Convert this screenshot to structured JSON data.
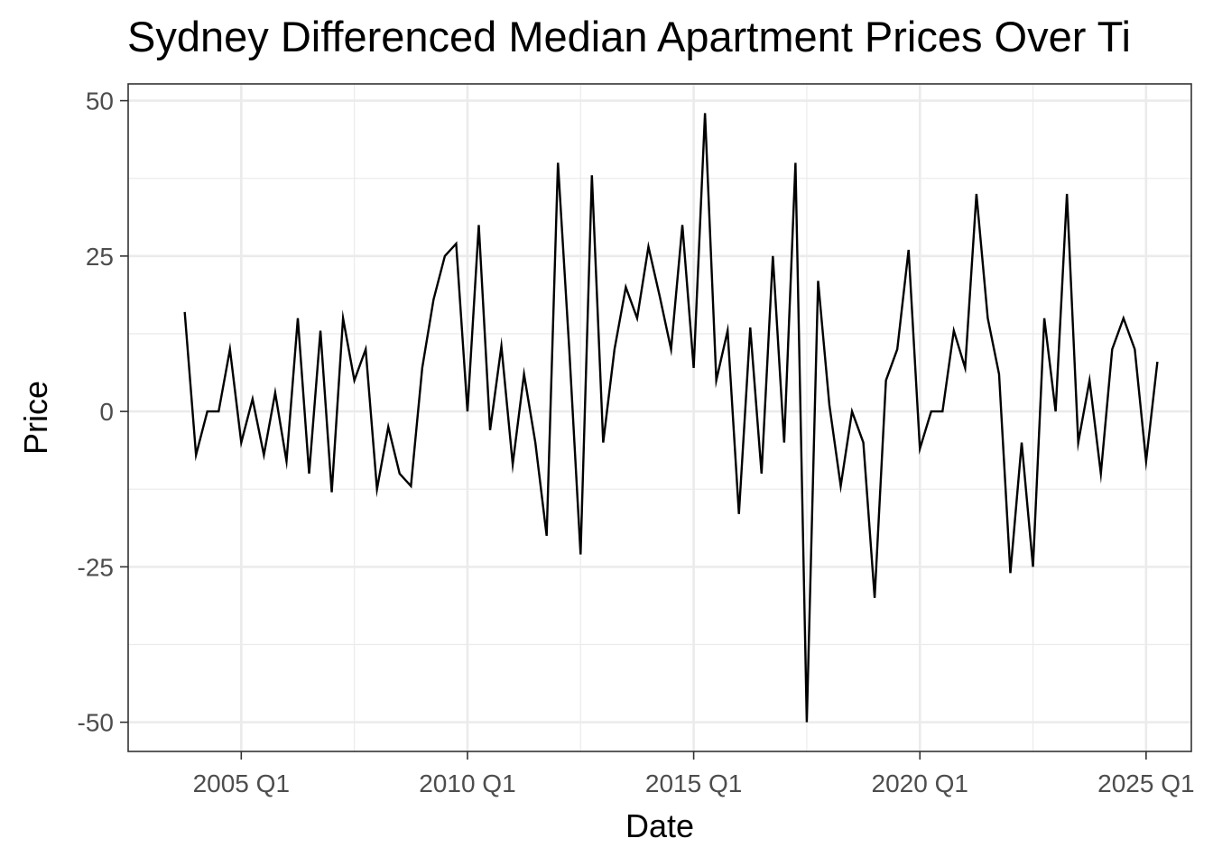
{
  "chart_data": {
    "type": "line",
    "title": "Sydney Differenced Median Apartment Prices Over Ti",
    "xlabel": "Date",
    "ylabel": "Price",
    "x_ticks": [
      "2005 Q1",
      "2010 Q1",
      "2015 Q1",
      "2020 Q1",
      "2025 Q1"
    ],
    "y_ticks": [
      "-50",
      "-25",
      "0",
      "25",
      "50"
    ],
    "ylim": [
      -54.7,
      52.7
    ],
    "xlim": [
      "2002 Q3",
      "2026 Q1"
    ],
    "grid": true,
    "line_color": "#000000",
    "x": [
      "2003 Q4",
      "2004 Q1",
      "2004 Q2",
      "2004 Q3",
      "2004 Q4",
      "2005 Q1",
      "2005 Q2",
      "2005 Q3",
      "2005 Q4",
      "2006 Q1",
      "2006 Q2",
      "2006 Q3",
      "2006 Q4",
      "2007 Q1",
      "2007 Q2",
      "2007 Q3",
      "2007 Q4",
      "2008 Q1",
      "2008 Q2",
      "2008 Q3",
      "2008 Q4",
      "2009 Q1",
      "2009 Q2",
      "2009 Q3",
      "2009 Q4",
      "2010 Q1",
      "2010 Q2",
      "2010 Q3",
      "2010 Q4",
      "2011 Q1",
      "2011 Q2",
      "2011 Q3",
      "2011 Q4",
      "2012 Q1",
      "2012 Q2",
      "2012 Q3",
      "2012 Q4",
      "2013 Q1",
      "2013 Q2",
      "2013 Q3",
      "2013 Q4",
      "2014 Q1",
      "2014 Q2",
      "2014 Q3",
      "2014 Q4",
      "2015 Q1",
      "2015 Q2",
      "2015 Q3",
      "2015 Q4",
      "2016 Q1",
      "2016 Q2",
      "2016 Q3",
      "2016 Q4",
      "2017 Q1",
      "2017 Q2",
      "2017 Q3",
      "2017 Q4",
      "2018 Q1",
      "2018 Q2",
      "2018 Q3",
      "2018 Q4",
      "2019 Q1",
      "2019 Q2",
      "2019 Q3",
      "2019 Q4",
      "2020 Q1",
      "2020 Q2",
      "2020 Q3",
      "2020 Q4",
      "2021 Q1",
      "2021 Q2",
      "2021 Q3",
      "2021 Q4",
      "2022 Q1",
      "2022 Q2",
      "2022 Q3",
      "2022 Q4",
      "2023 Q1",
      "2023 Q2",
      "2023 Q3",
      "2023 Q4",
      "2024 Q1",
      "2024 Q2",
      "2024 Q3",
      "2024 Q4",
      "2025 Q1",
      "2025 Q2"
    ],
    "series": [
      {
        "values": [
          16,
          -7,
          0,
          0,
          10,
          -5,
          2,
          -7,
          3,
          -8,
          15,
          -10,
          13,
          -13,
          15,
          5,
          10,
          -12.5,
          -2.5,
          -10,
          -12,
          7,
          18,
          25,
          27,
          0,
          30,
          -3,
          10.5,
          -8.5,
          6,
          -5,
          -20,
          40,
          10,
          -23,
          38,
          -5,
          10,
          20,
          15,
          26.5,
          18.5,
          10,
          30,
          7,
          48,
          5,
          13,
          -16.5,
          13.5,
          -10,
          25,
          -5,
          40,
          -50,
          21,
          1,
          -12,
          0,
          -5,
          -30,
          5,
          10,
          26,
          -6,
          0,
          0,
          13,
          7,
          35,
          15,
          6,
          -26,
          -5,
          -25,
          15,
          0,
          35,
          -5,
          5,
          -10,
          10,
          15,
          10,
          -8,
          8
        ]
      }
    ]
  }
}
